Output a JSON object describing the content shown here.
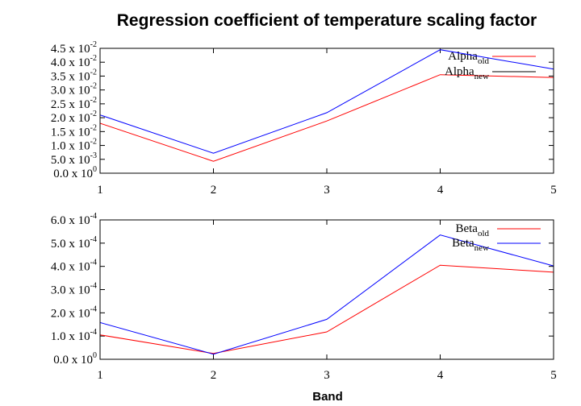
{
  "chart_data": [
    {
      "type": "line",
      "title": "Regression coefficient of temperature scaling factor",
      "xlabel": "",
      "ylabel": "",
      "x": [
        1,
        2,
        3,
        4,
        5
      ],
      "ylim": [
        0,
        0.045
      ],
      "yticks": [
        {
          "mant": "0.0",
          "exp": "0"
        },
        {
          "mant": "5.0",
          "exp": "-3"
        },
        {
          "mant": "1.0",
          "exp": "-2"
        },
        {
          "mant": "1.5",
          "exp": "-2"
        },
        {
          "mant": "2.0",
          "exp": "-2"
        },
        {
          "mant": "2.5",
          "exp": "-2"
        },
        {
          "mant": "3.0",
          "exp": "-2"
        },
        {
          "mant": "3.5",
          "exp": "-2"
        },
        {
          "mant": "4.0",
          "exp": "-2"
        },
        {
          "mant": "4.5",
          "exp": "-2"
        }
      ],
      "series": [
        {
          "name": "Alpha",
          "sub": "old",
          "color": "#ff0000",
          "legend_line_color": "#ff0000",
          "values": [
            0.018,
            0.0043,
            0.0188,
            0.0355,
            0.0345
          ]
        },
        {
          "name": "Alpha",
          "sub": "new",
          "color": "#0000ff",
          "legend_line_color": "#000000",
          "values": [
            0.021,
            0.0072,
            0.0218,
            0.0445,
            0.0375
          ]
        }
      ]
    },
    {
      "type": "line",
      "title": "",
      "xlabel": "Band",
      "ylabel": "",
      "x": [
        1,
        2,
        3,
        4,
        5
      ],
      "ylim": [
        0,
        0.0006
      ],
      "yticks": [
        {
          "mant": "0.0",
          "exp": "0"
        },
        {
          "mant": "1.0",
          "exp": "-4"
        },
        {
          "mant": "2.0",
          "exp": "-4"
        },
        {
          "mant": "3.0",
          "exp": "-4"
        },
        {
          "mant": "4.0",
          "exp": "-4"
        },
        {
          "mant": "5.0",
          "exp": "-4"
        },
        {
          "mant": "6.0",
          "exp": "-4"
        }
      ],
      "series": [
        {
          "name": "Beta",
          "sub": "old",
          "color": "#ff0000",
          "legend_line_color": "#ff0000",
          "values": [
            0.000105,
            2.5e-05,
            0.000118,
            0.000405,
            0.000375
          ]
        },
        {
          "name": "Beta",
          "sub": "new",
          "color": "#0000ff",
          "legend_line_color": "#0000ff",
          "values": [
            0.000158,
            2.2e-05,
            0.000172,
            0.000535,
            0.000402
          ]
        }
      ]
    }
  ]
}
